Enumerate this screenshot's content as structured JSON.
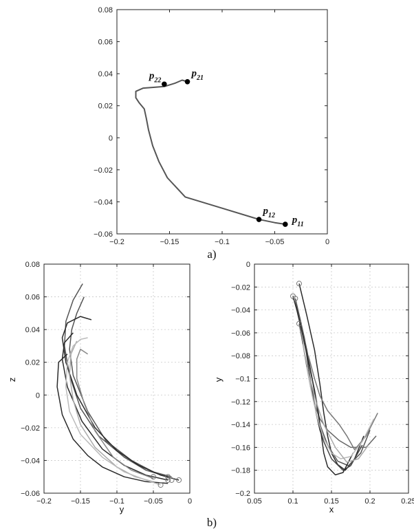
{
  "chart_data": [
    {
      "type": "line",
      "caption": "a)",
      "xlim": [
        -0.2,
        0
      ],
      "ylim": [
        -0.06,
        0.08
      ],
      "xticks": [
        "−0.2",
        "−0.15",
        "−0.1",
        "−0.05",
        "0"
      ],
      "yticks": [
        "−0.06",
        "−0.04",
        "−0.02",
        "0",
        "0.02",
        "0.04",
        "0.06",
        "0.08"
      ],
      "grid": false,
      "series": [
        {
          "color": "#555555",
          "x": [
            -0.133,
            -0.138,
            -0.145,
            -0.155,
            -0.175,
            -0.182,
            -0.182,
            -0.179,
            -0.174,
            -0.172,
            -0.17,
            -0.166,
            -0.16,
            -0.152,
            -0.135,
            -0.1,
            -0.065,
            -0.05,
            -0.04
          ],
          "y": [
            0.035,
            0.036,
            0.034,
            0.032,
            0.031,
            0.029,
            0.025,
            0.022,
            0.018,
            0.012,
            0.005,
            -0.005,
            -0.015,
            -0.025,
            -0.037,
            -0.044,
            -0.051,
            -0.053,
            -0.054
          ]
        }
      ],
      "points": [
        {
          "x": -0.155,
          "y": 0.0335,
          "label": "p",
          "sub": "22"
        },
        {
          "x": -0.133,
          "y": 0.035,
          "label": "p",
          "sub": "21"
        },
        {
          "x": -0.065,
          "y": -0.051,
          "label": "p",
          "sub": "12"
        },
        {
          "x": -0.04,
          "y": -0.054,
          "label": "p",
          "sub": "11"
        }
      ]
    },
    {
      "type": "line",
      "xlabel": "y",
      "ylabel": "z",
      "xlim": [
        -0.2,
        0
      ],
      "ylim": [
        -0.06,
        0.08
      ],
      "xticks": [
        "−0.2",
        "−0.15",
        "−0.1",
        "−0.05",
        "0"
      ],
      "yticks": [
        "−0.06",
        "−0.04",
        "−0.02",
        "0",
        "0.02",
        "0.04",
        "0.06",
        "0.08"
      ],
      "grid": true,
      "series": [
        {
          "color": "#555555",
          "x": [
            -0.147,
            -0.16,
            -0.17,
            -0.172,
            -0.165,
            -0.15,
            -0.125,
            -0.09,
            -0.06,
            -0.03
          ],
          "y": [
            0.068,
            0.058,
            0.045,
            0.03,
            0.012,
            -0.008,
            -0.025,
            -0.038,
            -0.046,
            -0.05
          ]
        },
        {
          "color": "#555555",
          "x": [
            -0.145,
            -0.155,
            -0.162,
            -0.165,
            -0.16,
            -0.14,
            -0.115,
            -0.08,
            -0.05,
            -0.025
          ],
          "y": [
            0.06,
            0.05,
            0.04,
            0.028,
            0.012,
            -0.01,
            -0.028,
            -0.04,
            -0.047,
            -0.05
          ]
        },
        {
          "color": "#2a2a2a",
          "x": [
            -0.135,
            -0.15,
            -0.168,
            -0.175,
            -0.17,
            -0.155,
            -0.13,
            -0.1,
            -0.07,
            -0.04,
            -0.015
          ],
          "y": [
            0.046,
            0.048,
            0.044,
            0.035,
            0.02,
            0.0,
            -0.02,
            -0.034,
            -0.043,
            -0.049,
            -0.052
          ]
        },
        {
          "color": "#2a2a2a",
          "x": [
            -0.16,
            -0.172,
            -0.175,
            -0.168,
            -0.148,
            -0.12,
            -0.09,
            -0.06,
            -0.03
          ],
          "y": [
            0.038,
            0.032,
            0.022,
            0.005,
            -0.016,
            -0.033,
            -0.043,
            -0.049,
            -0.052
          ]
        },
        {
          "color": "#2a2a2a",
          "x": [
            -0.168,
            -0.18,
            -0.182,
            -0.175,
            -0.16,
            -0.14,
            -0.12,
            -0.09,
            -0.06,
            -0.03
          ],
          "y": [
            0.025,
            0.02,
            0.005,
            -0.012,
            -0.027,
            -0.037,
            -0.044,
            -0.05,
            -0.053,
            -0.054
          ]
        },
        {
          "color": "#aaaaaa",
          "x": [
            -0.155,
            -0.163,
            -0.165,
            -0.16,
            -0.15,
            -0.13,
            -0.1,
            -0.075,
            -0.05
          ],
          "y": [
            0.033,
            0.025,
            0.012,
            -0.003,
            -0.018,
            -0.032,
            -0.044,
            -0.05,
            -0.053
          ]
        },
        {
          "color": "#bbbbbb",
          "x": [
            -0.14,
            -0.15,
            -0.16,
            -0.168,
            -0.17,
            -0.165,
            -0.15,
            -0.12,
            -0.09,
            -0.06,
            -0.04
          ],
          "y": [
            0.035,
            0.034,
            0.03,
            0.02,
            0.005,
            -0.01,
            -0.024,
            -0.038,
            -0.047,
            -0.052,
            -0.055
          ]
        },
        {
          "color": "#888888",
          "x": [
            -0.14,
            -0.15,
            -0.155,
            -0.155,
            -0.145,
            -0.13,
            -0.105,
            -0.08,
            -0.05
          ],
          "y": [
            0.025,
            0.028,
            0.022,
            0.01,
            -0.005,
            -0.022,
            -0.038,
            -0.046,
            -0.051
          ]
        }
      ],
      "markers": [
        {
          "x": -0.05,
          "y": -0.05
        },
        {
          "x": -0.03,
          "y": -0.05
        },
        {
          "x": -0.015,
          "y": -0.052
        },
        {
          "x": -0.03,
          "y": -0.052
        },
        {
          "x": -0.04,
          "y": -0.055
        },
        {
          "x": -0.025,
          "y": -0.052
        }
      ]
    },
    {
      "type": "line",
      "xlabel": "x",
      "ylabel": "y",
      "xlim": [
        0.05,
        0.25
      ],
      "ylim": [
        -0.2,
        0
      ],
      "xticks": [
        "0.05",
        "0.1",
        "0.15",
        "0.2",
        "0.25"
      ],
      "yticks": [
        "−0.2",
        "−0.18",
        "−0.16",
        "−0.14",
        "−0.12",
        "−0.1",
        "−0.08",
        "−0.06",
        "−0.04",
        "−0.02",
        "0"
      ],
      "grid": true,
      "series": [
        {
          "color": "#2a2a2a",
          "x": [
            0.108,
            0.118,
            0.128,
            0.135,
            0.14,
            0.145,
            0.15,
            0.158,
            0.168,
            0.18,
            0.192
          ],
          "y": [
            -0.017,
            -0.045,
            -0.075,
            -0.105,
            -0.13,
            -0.15,
            -0.165,
            -0.175,
            -0.18,
            -0.17,
            -0.15
          ]
        },
        {
          "color": "#444444",
          "x": [
            0.1,
            0.108,
            0.115,
            0.12,
            0.125,
            0.13,
            0.135,
            0.14,
            0.15,
            0.165,
            0.175,
            0.19
          ],
          "y": [
            -0.028,
            -0.045,
            -0.065,
            -0.09,
            -0.11,
            -0.13,
            -0.145,
            -0.155,
            -0.17,
            -0.18,
            -0.176,
            -0.158
          ]
        },
        {
          "color": "#555555",
          "x": [
            0.103,
            0.11,
            0.118,
            0.125,
            0.13,
            0.135,
            0.145,
            0.158,
            0.172,
            0.188,
            0.2
          ],
          "y": [
            -0.03,
            -0.05,
            -0.075,
            -0.1,
            -0.12,
            -0.14,
            -0.158,
            -0.172,
            -0.176,
            -0.165,
            -0.145
          ]
        },
        {
          "color": "#666666",
          "x": [
            0.108,
            0.113,
            0.118,
            0.123,
            0.128,
            0.135,
            0.145,
            0.16,
            0.175,
            0.195,
            0.208
          ],
          "y": [
            -0.052,
            -0.07,
            -0.09,
            -0.108,
            -0.123,
            -0.135,
            -0.145,
            -0.154,
            -0.16,
            -0.16,
            -0.15
          ]
        },
        {
          "color": "#2a2a2a",
          "x": [
            0.1,
            0.105,
            0.112,
            0.12,
            0.128,
            0.133,
            0.137,
            0.14,
            0.145,
            0.155,
            0.165,
            0.178
          ],
          "y": [
            -0.028,
            -0.04,
            -0.06,
            -0.085,
            -0.11,
            -0.13,
            -0.15,
            -0.165,
            -0.177,
            -0.184,
            -0.182,
            -0.165
          ]
        },
        {
          "color": "#777777",
          "x": [
            0.12,
            0.128,
            0.135,
            0.145,
            0.16,
            0.17,
            0.18,
            0.195,
            0.21
          ],
          "y": [
            -0.08,
            -0.1,
            -0.115,
            -0.128,
            -0.14,
            -0.15,
            -0.162,
            -0.15,
            -0.13
          ]
        },
        {
          "color": "#bbbbbb",
          "x": [
            0.118,
            0.125,
            0.132,
            0.14,
            0.15,
            0.162,
            0.175,
            0.19,
            0.205
          ],
          "y": [
            -0.09,
            -0.115,
            -0.135,
            -0.152,
            -0.165,
            -0.17,
            -0.168,
            -0.155,
            -0.135
          ]
        },
        {
          "color": "#aaaaaa",
          "x": [
            0.113,
            0.12,
            0.13,
            0.14,
            0.155,
            0.17,
            0.185,
            0.198
          ],
          "y": [
            -0.07,
            -0.095,
            -0.12,
            -0.14,
            -0.16,
            -0.173,
            -0.17,
            -0.158
          ]
        }
      ],
      "markers": [
        {
          "x": 0.108,
          "y": -0.017
        },
        {
          "x": 0.1,
          "y": -0.028
        },
        {
          "x": 0.103,
          "y": -0.03
        },
        {
          "x": 0.108,
          "y": -0.052
        }
      ]
    }
  ],
  "captions": {
    "b": "b)"
  }
}
